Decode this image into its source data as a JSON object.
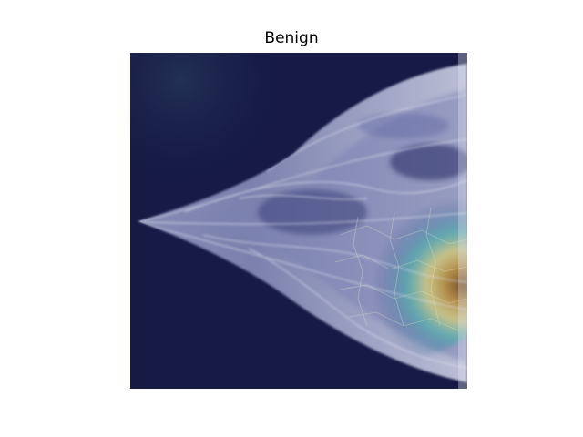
{
  "figure": {
    "title": "Benign"
  },
  "image": {
    "subject": "mammogram-heatmap-overlay",
    "colors": {
      "background": "#161a45",
      "tissue": "#c9cde6",
      "heat_low": "#35b8b0",
      "heat_mid": "#d8d080",
      "heat_high": "#7a4a1a"
    }
  }
}
